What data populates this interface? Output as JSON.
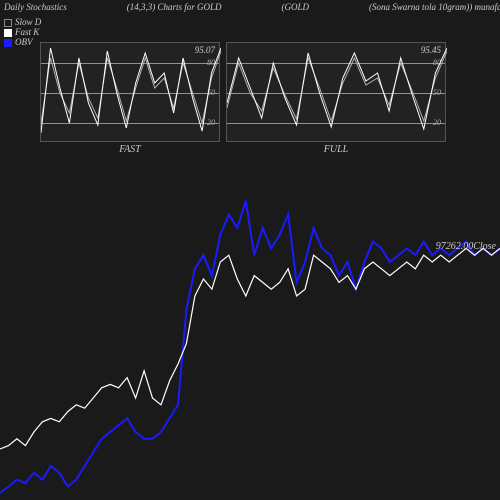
{
  "header": {
    "title_left": "Daily Stochastics",
    "params": "(14,3,3) Charts for GOLD",
    "symbol": "(GOLD",
    "desc": "(Sona  Swarna  tola  10gram)) munafa"
  },
  "colors": {
    "bg": "#1a1a1a",
    "panel_bg": "#222222",
    "panel_border": "#555555",
    "grid_line": "#c88a2e",
    "text": "#cccccc",
    "white_line": "#ffffff",
    "gray_line": "#b0b0b0",
    "obv_line": "#1a1aff"
  },
  "legend": {
    "slow_d": {
      "label": "Slow  D",
      "fill": "#1a1a1a",
      "border": "#888"
    },
    "fast_k": {
      "label": "Fast K",
      "fill": "#ffffff",
      "border": "#fff"
    },
    "obv": {
      "label": "OBV",
      "fill": "#1a1aff",
      "border": "#1a1aff"
    }
  },
  "fast_chart": {
    "label": "FAST",
    "value": "95.07",
    "ylim": [
      0,
      100
    ],
    "yticks": [
      20,
      50,
      80
    ],
    "line_white": [
      10,
      95,
      55,
      20,
      85,
      40,
      18,
      92,
      50,
      15,
      60,
      90,
      60,
      70,
      30,
      85,
      45,
      12,
      70,
      95
    ],
    "line_gray": [
      20,
      85,
      50,
      30,
      80,
      45,
      25,
      85,
      55,
      22,
      55,
      85,
      55,
      65,
      35,
      80,
      50,
      20,
      65,
      92
    ]
  },
  "full_chart": {
    "label": "FULL",
    "value": "95.45",
    "ylim": [
      0,
      100
    ],
    "yticks": [
      20,
      50,
      80
    ],
    "line_white": [
      40,
      85,
      55,
      25,
      80,
      45,
      18,
      90,
      50,
      16,
      65,
      90,
      62,
      70,
      32,
      85,
      48,
      14,
      70,
      95
    ],
    "line_gray": [
      35,
      80,
      50,
      32,
      75,
      48,
      24,
      85,
      55,
      22,
      60,
      85,
      58,
      65,
      38,
      80,
      52,
      22,
      65,
      92
    ]
  },
  "main_chart": {
    "close_value": "97262.00",
    "close_label": "Close",
    "price_values": [
      15,
      16,
      18,
      16,
      20,
      23,
      24,
      23,
      26,
      28,
      27,
      30,
      33,
      34,
      33,
      36,
      30,
      38,
      30,
      28,
      35,
      40,
      46,
      60,
      65,
      62,
      70,
      72,
      65,
      60,
      66,
      64,
      62,
      64,
      68,
      60,
      62,
      72,
      70,
      68,
      64,
      66,
      62,
      68,
      70,
      68,
      66,
      68,
      70,
      68,
      72,
      70,
      72,
      70,
      72,
      74,
      72,
      74,
      72,
      74
    ],
    "obv_values": [
      2,
      4,
      6,
      5,
      8,
      6,
      10,
      8,
      4,
      6,
      10,
      14,
      18,
      20,
      22,
      24,
      20,
      18,
      18,
      20,
      24,
      28,
      56,
      68,
      72,
      66,
      78,
      84,
      80,
      88,
      72,
      80,
      74,
      78,
      84,
      64,
      70,
      80,
      74,
      72,
      66,
      70,
      62,
      70,
      76,
      74,
      70,
      72,
      74,
      72,
      76,
      72,
      74,
      72,
      74,
      76,
      72,
      74,
      72,
      74
    ]
  }
}
